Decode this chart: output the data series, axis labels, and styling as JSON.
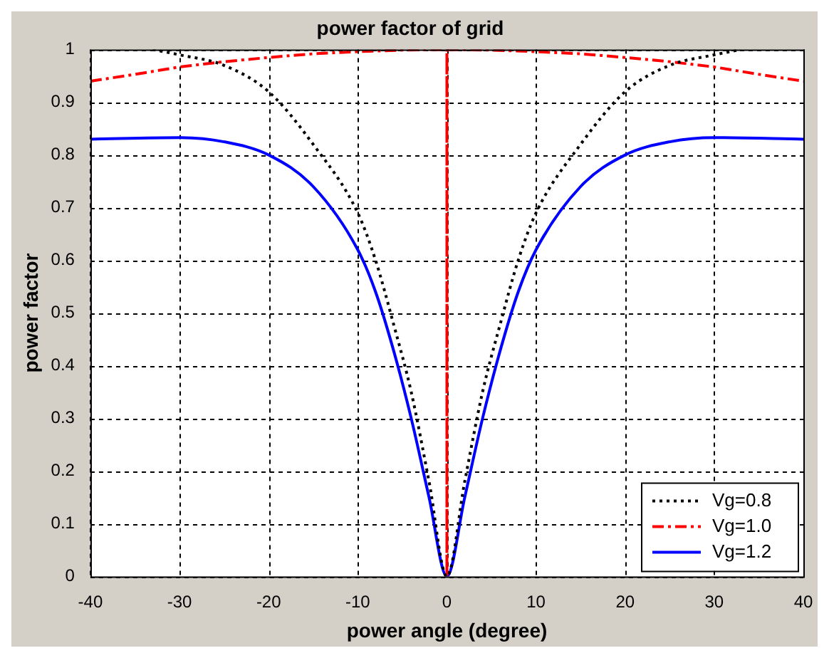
{
  "chart_data": {
    "type": "line",
    "title": "power factor of grid",
    "xlabel": "power angle (degree)",
    "ylabel": "power factor",
    "xlim": [
      -40,
      40
    ],
    "xticks": [
      -40,
      -30,
      -20,
      -10,
      0,
      10,
      20,
      30,
      40
    ],
    "ylim": [
      0,
      1
    ],
    "yticks": [
      0,
      0.1,
      0.2,
      0.3,
      0.4,
      0.5,
      0.6,
      0.7,
      0.8,
      0.9,
      1
    ],
    "grid": true,
    "legend": "bottom right",
    "marker": "none",
    "series": [
      {
        "name": "Vg=0.8",
        "color": "#000000",
        "line_style": "dotted",
        "x": [
          -33,
          -30,
          -25,
          -20,
          -15,
          -10,
          -8,
          -6,
          -4,
          -2,
          0,
          2,
          4,
          6,
          8,
          10,
          15,
          20,
          25,
          30,
          33
        ],
        "values": [
          1,
          0.99,
          0.97,
          0.92,
          0.82,
          0.69,
          0.6,
          0.48,
          0.35,
          0.18,
          0,
          0.18,
          0.35,
          0.48,
          0.6,
          0.69,
          0.82,
          0.92,
          0.97,
          0.99,
          1
        ]
      },
      {
        "name": "Vg=1.0",
        "color": "#ff0000",
        "line_style": "dashed",
        "x": [
          -40,
          -35,
          -30,
          -25,
          -20,
          -15,
          -10,
          -5,
          0,
          0,
          0,
          5,
          10,
          15,
          20,
          25,
          30,
          35,
          40
        ],
        "values": [
          0.94,
          0.953,
          0.967,
          0.977,
          0.985,
          0.992,
          0.996,
          0.999,
          1,
          0,
          1,
          0.999,
          0.996,
          0.992,
          0.985,
          0.977,
          0.967,
          0.953,
          0.94
        ]
      },
      {
        "name": "Vg=1.2",
        "color": "#0000ff",
        "line_style": "solid",
        "x": [
          -40,
          -30,
          -25,
          -20,
          -15,
          -10,
          -8,
          -6,
          -4,
          -2,
          0,
          2,
          4,
          6,
          8,
          10,
          15,
          20,
          25,
          30,
          40
        ],
        "values": [
          0.83,
          0.833,
          0.825,
          0.8,
          0.74,
          0.62,
          0.54,
          0.43,
          0.3,
          0.15,
          0,
          0.15,
          0.3,
          0.43,
          0.54,
          0.62,
          0.74,
          0.8,
          0.825,
          0.833,
          0.83
        ]
      }
    ]
  }
}
